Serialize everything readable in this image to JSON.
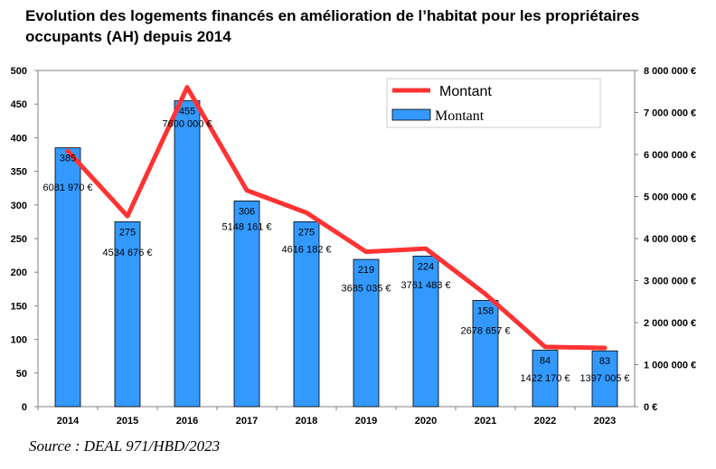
{
  "title": "Evolution des logements financés en amélioration de l’habitat pour les propriétaires occupants (AH) depuis 2014",
  "source": "Source : DEAL 971/HBD/2023",
  "chart_data": {
    "type": "bar",
    "categories": [
      "2014",
      "2015",
      "2016",
      "2017",
      "2018",
      "2019",
      "2020",
      "2021",
      "2022",
      "2023"
    ],
    "series": [
      {
        "name": "Montant",
        "chart_type": "bar",
        "axis": "left",
        "values": [
          385,
          275,
          455,
          306,
          275,
          219,
          224,
          158,
          84,
          83
        ],
        "color": "#3399ff"
      },
      {
        "name": "Montant",
        "chart_type": "line",
        "axis": "right",
        "values": [
          6081970,
          4534676,
          7600000,
          5148161,
          4616182,
          3685035,
          3761483,
          2678657,
          1422170,
          1397005
        ],
        "labels": [
          "6081 970 €",
          "4534 676 €",
          "7600 000 €",
          "5148 161 €",
          "4616 182 €",
          "3685 035 €",
          "3761 483 €",
          "2678 657 €",
          "1422 170 €",
          "1397 005 €"
        ],
        "color": "#ff3333"
      }
    ],
    "ylim": [
      0,
      500
    ],
    "yticks": [
      "0",
      "50",
      "100",
      "150",
      "200",
      "250",
      "300",
      "350",
      "400",
      "450",
      "500"
    ],
    "y2lim": [
      0,
      8000000
    ],
    "y2ticks": [
      "0 €",
      "1 000 000 €",
      "2 000 000 €",
      "3 000 000 €",
      "4 000 000 €",
      "5 000 000 €",
      "6 000 000 €",
      "7 000 000 €",
      "8 000 000 €"
    ],
    "legend": {
      "placement": "top-right",
      "line_label": "Montant",
      "bar_label": "Montant"
    },
    "grid": false
  }
}
